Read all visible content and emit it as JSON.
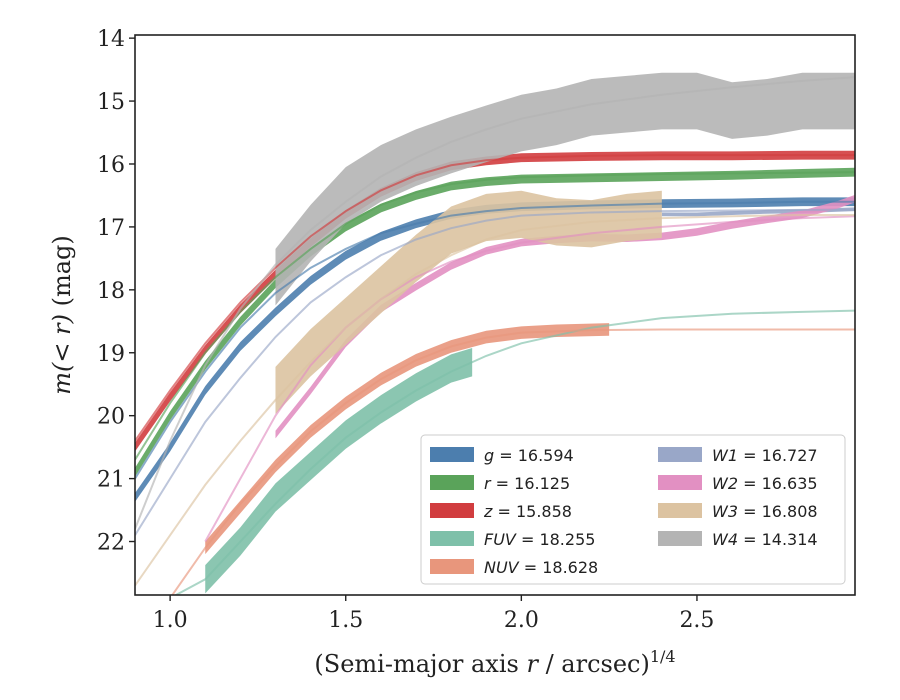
{
  "chart_data": {
    "type": "line",
    "xlabel_main": "(Semi-major axis ",
    "xlabel_r": "r",
    "xlabel_rest": " / arcsec)",
    "xlabel_sup": "1/4",
    "ylabel_m": "m",
    "ylabel_lt_r": "(< r)",
    "ylabel_unit": " (mag)",
    "xlim": [
      0.9,
      2.95
    ],
    "ylim": [
      22.85,
      13.95
    ],
    "y_inverted": true,
    "xticks": [
      1.0,
      1.5,
      2.0,
      2.5
    ],
    "xtick_labels": [
      "1.0",
      "1.5",
      "2.0",
      "2.5"
    ],
    "yticks": [
      14,
      15,
      16,
      17,
      18,
      19,
      20,
      21,
      22
    ],
    "ytick_labels": [
      "14",
      "15",
      "16",
      "17",
      "18",
      "19",
      "20",
      "21",
      "22"
    ],
    "grid": false,
    "legend_position": "lower-right",
    "series": [
      {
        "name": "g",
        "label_value": "16.594",
        "color": "#4c7eae",
        "band_x": [
          0.9,
          1.0,
          1.1,
          1.2,
          1.3,
          1.4,
          1.5,
          1.6,
          1.7,
          1.8,
          1.9,
          2.0,
          2.2,
          2.4,
          2.6,
          2.8,
          2.95
        ],
        "band_y": [
          21.3,
          20.5,
          19.6,
          18.9,
          18.35,
          17.85,
          17.45,
          17.15,
          16.95,
          16.8,
          16.72,
          16.68,
          16.65,
          16.63,
          16.62,
          16.6,
          16.6
        ],
        "band_w": 0.14,
        "fit_x": [
          0.9,
          1.0,
          1.1,
          1.2,
          1.3,
          1.4,
          1.5,
          1.6,
          1.7,
          1.8,
          1.9,
          2.0,
          2.2,
          2.4,
          2.6,
          2.8,
          2.95
        ],
        "fit_y": [
          21.0,
          20.1,
          19.3,
          18.6,
          18.05,
          17.65,
          17.35,
          17.1,
          16.95,
          16.82,
          16.75,
          16.7,
          16.66,
          16.63,
          16.62,
          16.6,
          16.6
        ]
      },
      {
        "name": "r",
        "label_value": "16.125",
        "color": "#5aa35a",
        "band_x": [
          0.9,
          1.0,
          1.1,
          1.2,
          1.3,
          1.4,
          1.5,
          1.6,
          1.7,
          1.8,
          1.9,
          2.0,
          2.2,
          2.4,
          2.6,
          2.8,
          2.95
        ],
        "band_y": [
          20.9,
          20.0,
          19.2,
          18.5,
          17.9,
          17.4,
          17.0,
          16.7,
          16.5,
          16.35,
          16.28,
          16.24,
          16.22,
          16.2,
          16.18,
          16.15,
          16.13
        ],
        "band_w": 0.14,
        "fit_x": [
          0.9,
          1.0,
          1.1,
          1.2,
          1.3,
          1.4,
          1.5,
          1.6,
          1.7,
          1.8,
          1.9,
          2.0,
          2.2,
          2.4,
          2.6,
          2.8,
          2.95
        ],
        "fit_y": [
          20.7,
          19.8,
          19.0,
          18.35,
          17.8,
          17.35,
          16.95,
          16.65,
          16.45,
          16.32,
          16.25,
          16.21,
          16.18,
          16.16,
          16.15,
          16.14,
          16.13
        ]
      },
      {
        "name": "z",
        "label_value": "15.858",
        "color": "#d13d3f",
        "band_x": [
          0.9,
          1.0,
          1.1,
          1.2,
          1.3,
          1.4,
          1.5,
          1.6,
          1.7,
          1.8,
          1.9,
          2.0,
          2.2,
          2.4,
          2.6,
          2.8,
          2.95
        ],
        "band_y": [
          20.5,
          19.7,
          18.95,
          18.3,
          17.75,
          17.25,
          16.8,
          16.45,
          16.2,
          16.03,
          15.95,
          15.9,
          15.88,
          15.87,
          15.87,
          15.86,
          15.86
        ],
        "band_w": 0.14,
        "fit_x": [
          0.9,
          1.0,
          1.1,
          1.2,
          1.3,
          1.4,
          1.5,
          1.6,
          1.7,
          1.8,
          1.9,
          2.0,
          2.2,
          2.4,
          2.6,
          2.8,
          2.95
        ],
        "fit_y": [
          20.4,
          19.6,
          18.85,
          18.2,
          17.65,
          17.15,
          16.75,
          16.42,
          16.18,
          16.02,
          15.94,
          15.9,
          15.87,
          15.86,
          15.86,
          15.86,
          15.86
        ]
      },
      {
        "name": "FUV",
        "label_value": "18.255",
        "color": "#7ec0a9",
        "band_x": [
          1.1,
          1.2,
          1.3,
          1.4,
          1.5,
          1.6,
          1.7,
          1.8,
          1.86
        ],
        "band_y": [
          22.6,
          22.0,
          21.3,
          20.8,
          20.3,
          19.9,
          19.55,
          19.25,
          19.15
        ],
        "band_w": 0.45,
        "fit_x": [
          1.0,
          1.1,
          1.2,
          1.3,
          1.4,
          1.5,
          1.6,
          1.7,
          1.8,
          1.9,
          2.0,
          2.2,
          2.4,
          2.6,
          2.8,
          2.95
        ],
        "fit_y": [
          22.9,
          22.6,
          22.0,
          21.4,
          20.85,
          20.35,
          19.95,
          19.6,
          19.3,
          19.05,
          18.85,
          18.6,
          18.45,
          18.38,
          18.35,
          18.33
        ]
      },
      {
        "name": "NUV",
        "label_value": "18.628",
        "color": "#e8967c",
        "band_x": [
          1.1,
          1.2,
          1.3,
          1.4,
          1.5,
          1.6,
          1.7,
          1.8,
          1.9,
          2.0,
          2.1,
          2.25
        ],
        "band_y": [
          22.1,
          21.45,
          20.8,
          20.25,
          19.8,
          19.42,
          19.12,
          18.9,
          18.75,
          18.68,
          18.65,
          18.63
        ],
        "band_w": 0.2,
        "fit_x": [
          0.9,
          1.0,
          1.1,
          1.2,
          1.3,
          1.4,
          1.5,
          1.6,
          1.7,
          1.8,
          1.9,
          2.0,
          2.2,
          2.4,
          2.6,
          2.8,
          2.95
        ],
        "fit_y": [
          23.5,
          22.9,
          22.1,
          21.4,
          20.8,
          20.25,
          19.8,
          19.42,
          19.12,
          18.9,
          18.76,
          18.68,
          18.64,
          18.63,
          18.63,
          18.63,
          18.63
        ]
      },
      {
        "name": "W1",
        "label_value": "16.727",
        "color": "#99a7c8",
        "band_x": [
          2.4,
          2.5,
          2.6,
          2.7,
          2.8,
          2.9,
          2.95
        ],
        "band_y": [
          16.8,
          16.8,
          16.78,
          16.76,
          16.75,
          16.73,
          16.72
        ],
        "band_w": 0.06,
        "fit_x": [
          0.9,
          1.0,
          1.1,
          1.2,
          1.3,
          1.4,
          1.5,
          1.6,
          1.7,
          1.8,
          1.9,
          2.0,
          2.2,
          2.4,
          2.6,
          2.8,
          2.95
        ],
        "fit_y": [
          21.9,
          21.0,
          20.1,
          19.4,
          18.75,
          18.2,
          17.8,
          17.45,
          17.2,
          17.02,
          16.9,
          16.82,
          16.77,
          16.75,
          16.74,
          16.73,
          16.73
        ]
      },
      {
        "name": "W2",
        "label_value": "16.635",
        "color": "#e290c2",
        "band_x": [
          1.3,
          1.4,
          1.5,
          1.6,
          1.7,
          1.8,
          1.9,
          2.0,
          2.1,
          2.2,
          2.3,
          2.4,
          2.5,
          2.6,
          2.7,
          2.8,
          2.9,
          2.95
        ],
        "band_y": [
          20.3,
          19.6,
          18.85,
          18.3,
          17.95,
          17.62,
          17.38,
          17.25,
          17.2,
          17.17,
          17.18,
          17.15,
          17.08,
          16.97,
          16.88,
          16.8,
          16.65,
          16.55
        ],
        "band_w": 0.12,
        "fit_x": [
          1.1,
          1.2,
          1.3,
          1.4,
          1.5,
          1.6,
          1.7,
          1.8,
          1.9,
          2.0,
          2.2,
          2.4,
          2.6,
          2.8,
          2.95
        ],
        "fit_y": [
          22.0,
          21.0,
          20.0,
          19.2,
          18.6,
          18.15,
          17.8,
          17.55,
          17.38,
          17.25,
          17.1,
          17.0,
          16.92,
          16.86,
          16.83
        ]
      },
      {
        "name": "W3",
        "label_value": "16.808",
        "color": "#dcc3a1",
        "band_x": [
          1.3,
          1.4,
          1.5,
          1.6,
          1.7,
          1.8,
          1.9,
          2.0,
          2.1,
          2.2,
          2.3,
          2.4
        ],
        "band_y": [
          19.6,
          19.0,
          18.5,
          18.0,
          17.5,
          17.05,
          16.85,
          16.8,
          16.92,
          16.95,
          16.85,
          16.8
        ],
        "band_w": 0.75,
        "fit_x": [
          0.9,
          1.0,
          1.1,
          1.2,
          1.3,
          1.4,
          1.5,
          1.6,
          1.7,
          1.8,
          1.9,
          2.0,
          2.2,
          2.4,
          2.6,
          2.8,
          2.95
        ],
        "fit_y": [
          22.7,
          21.9,
          21.1,
          20.4,
          19.75,
          19.15,
          18.6,
          18.15,
          17.75,
          17.45,
          17.2,
          17.05,
          16.92,
          16.86,
          16.83,
          16.81,
          16.81
        ]
      },
      {
        "name": "W4",
        "label_value": "14.314",
        "color": "#b4b4b4",
        "band_x": [
          1.3,
          1.4,
          1.5,
          1.6,
          1.7,
          1.8,
          1.9,
          2.0,
          2.1,
          2.2,
          2.3,
          2.4,
          2.5,
          2.6,
          2.7,
          2.8,
          2.9,
          2.95
        ],
        "band_y": [
          17.8,
          17.1,
          16.5,
          16.15,
          15.9,
          15.7,
          15.52,
          15.35,
          15.25,
          15.1,
          15.05,
          15.0,
          15.0,
          15.15,
          15.1,
          15.0,
          15.0,
          15.0
        ],
        "band_w": 0.9,
        "fit_x": [
          0.9,
          1.0,
          1.1,
          1.2,
          1.3,
          1.4,
          1.5,
          1.6,
          1.7,
          1.8,
          1.9,
          2.0,
          2.2,
          2.4,
          2.6,
          2.8,
          2.95
        ],
        "fit_y": [
          21.8,
          20.4,
          19.2,
          18.3,
          17.6,
          17.05,
          16.6,
          16.2,
          15.9,
          15.65,
          15.45,
          15.28,
          15.05,
          14.9,
          14.78,
          14.68,
          14.62
        ]
      }
    ]
  }
}
